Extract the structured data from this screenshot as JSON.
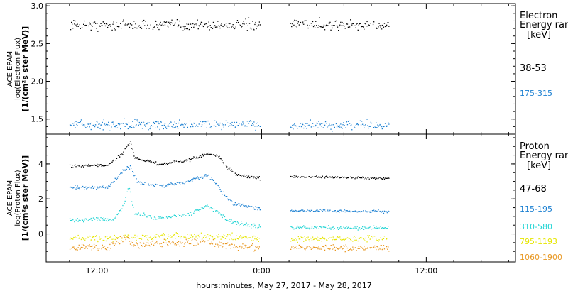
{
  "chart_data": [
    {
      "type": "scatter",
      "ylabel": [
        "ACE EPAM",
        "log(Electron Flux)",
        "[1/(cm²s ster MeV)]"
      ],
      "ylim": [
        1.3,
        3.03
      ],
      "yticks": [
        1.5,
        2.0,
        2.5,
        3.0
      ],
      "ytick_labels": [
        "1.5",
        "2.0",
        "2.5",
        "3.0"
      ],
      "legend_title": [
        "Electron",
        "Energy range",
        "[keV]"
      ],
      "series": [
        {
          "name": "38-53",
          "color": "#000000",
          "segments": [
            {
              "t_start": 10.0,
              "t_end": 23.9,
              "baseline": [
                [
                  10.0,
                  2.75
                ],
                [
                  23.9,
                  2.75
                ]
              ],
              "jitter": 0.07
            },
            {
              "t_start": 26.1,
              "t_end": 33.3,
              "baseline": [
                [
                  26.1,
                  2.76
                ],
                [
                  33.3,
                  2.74
                ]
              ],
              "jitter": 0.07
            }
          ]
        },
        {
          "name": "175-315",
          "color": "#1a7fd1",
          "segments": [
            {
              "t_start": 10.0,
              "t_end": 23.9,
              "baseline": [
                [
                  10.0,
                  1.43
                ],
                [
                  23.9,
                  1.43
                ]
              ],
              "jitter": 0.06
            },
            {
              "t_start": 26.1,
              "t_end": 33.3,
              "baseline": [
                [
                  26.1,
                  1.42
                ],
                [
                  33.3,
                  1.42
                ]
              ],
              "jitter": 0.06
            }
          ]
        }
      ]
    },
    {
      "type": "scatter",
      "ylabel": [
        "ACE EPAM",
        "log(Proton Flux)",
        "[1/(cm²s ster MeV)]"
      ],
      "ylim": [
        -1.6,
        5.7
      ],
      "yticks": [
        0,
        2,
        4
      ],
      "ytick_labels": [
        "0",
        "2",
        "4"
      ],
      "legend_title": [
        "Proton",
        "Energy range",
        "[keV]"
      ],
      "series": [
        {
          "name": "47-68",
          "color": "#000000",
          "segments": [
            {
              "t_start": 10.0,
              "t_end": 23.9,
              "baseline": [
                [
                  10.0,
                  3.9
                ],
                [
                  12.8,
                  3.95
                ],
                [
                  13.8,
                  4.6
                ],
                [
                  14.4,
                  5.3
                ],
                [
                  14.7,
                  4.4
                ],
                [
                  16.5,
                  4.0
                ],
                [
                  18.5,
                  4.2
                ],
                [
                  20.0,
                  4.6
                ],
                [
                  20.8,
                  4.5
                ],
                [
                  21.5,
                  3.8
                ],
                [
                  22.2,
                  3.4
                ],
                [
                  23.9,
                  3.2
                ]
              ],
              "jitter": 0.08
            },
            {
              "t_start": 26.1,
              "t_end": 33.3,
              "baseline": [
                [
                  26.1,
                  3.3
                ],
                [
                  33.3,
                  3.2
                ]
              ],
              "jitter": 0.06
            }
          ]
        },
        {
          "name": "115-195",
          "color": "#1a7fd1",
          "segments": [
            {
              "t_start": 10.0,
              "t_end": 23.9,
              "baseline": [
                [
                  10.0,
                  2.65
                ],
                [
                  12.8,
                  2.7
                ],
                [
                  13.6,
                  3.4
                ],
                [
                  14.4,
                  3.9
                ],
                [
                  14.9,
                  3.0
                ],
                [
                  16.5,
                  2.75
                ],
                [
                  18.5,
                  3.0
                ],
                [
                  20.0,
                  3.4
                ],
                [
                  20.6,
                  3.0
                ],
                [
                  21.2,
                  2.3
                ],
                [
                  22.0,
                  1.7
                ],
                [
                  23.0,
                  1.6
                ],
                [
                  23.9,
                  1.45
                ]
              ],
              "jitter": 0.1
            },
            {
              "t_start": 26.1,
              "t_end": 33.3,
              "baseline": [
                [
                  26.1,
                  1.35
                ],
                [
                  33.3,
                  1.3
                ]
              ],
              "jitter": 0.07
            }
          ]
        },
        {
          "name": "310-580",
          "color": "#22d4d4",
          "segments": [
            {
              "t_start": 10.0,
              "t_end": 23.9,
              "baseline": [
                [
                  10.0,
                  0.85
                ],
                [
                  13.2,
                  0.85
                ],
                [
                  13.9,
                  1.6
                ],
                [
                  14.3,
                  2.8
                ],
                [
                  14.7,
                  1.2
                ],
                [
                  16.5,
                  0.9
                ],
                [
                  18.5,
                  1.1
                ],
                [
                  20.0,
                  1.6
                ],
                [
                  20.8,
                  1.3
                ],
                [
                  21.4,
                  0.8
                ],
                [
                  23.9,
                  0.4
                ]
              ],
              "jitter": 0.12
            },
            {
              "t_start": 26.1,
              "t_end": 33.3,
              "baseline": [
                [
                  26.1,
                  0.4
                ],
                [
                  33.3,
                  0.35
                ]
              ],
              "jitter": 0.1
            }
          ]
        },
        {
          "name": "795-1193",
          "color": "#e6e600",
          "segments": [
            {
              "t_start": 10.0,
              "t_end": 23.9,
              "baseline": [
                [
                  10.0,
                  -0.25
                ],
                [
                  14.0,
                  -0.2
                ],
                [
                  20.0,
                  -0.1
                ],
                [
                  23.9,
                  -0.25
                ]
              ],
              "jitter": 0.18
            },
            {
              "t_start": 26.1,
              "t_end": 33.3,
              "baseline": [
                [
                  26.1,
                  -0.25
                ],
                [
                  33.3,
                  -0.25
                ]
              ],
              "jitter": 0.15
            }
          ]
        },
        {
          "name": "1060-1900",
          "color": "#e8961e",
          "segments": [
            {
              "t_start": 10.0,
              "t_end": 23.9,
              "baseline": [
                [
                  10.0,
                  -0.75
                ],
                [
                  13.0,
                  -0.7
                ],
                [
                  14.0,
                  -0.1
                ],
                [
                  14.5,
                  -0.6
                ],
                [
                  20.0,
                  -0.4
                ],
                [
                  21.0,
                  -0.6
                ],
                [
                  23.9,
                  -0.85
                ]
              ],
              "jitter": 0.2
            },
            {
              "t_start": 26.1,
              "t_end": 33.3,
              "baseline": [
                [
                  26.1,
                  -0.75
                ],
                [
                  33.3,
                  -0.8
                ]
              ],
              "jitter": 0.15
            }
          ]
        }
      ]
    }
  ],
  "x_axis": {
    "xlim": [
      8.3,
      42.5
    ],
    "major_ticks": [
      12,
      24,
      36
    ],
    "tick_labels": [
      "12:00",
      "0:00",
      "12:00"
    ],
    "minor_tick_step": 2,
    "xlabel": "hours:minutes, May 27, 2017 - May 28, 2017"
  }
}
